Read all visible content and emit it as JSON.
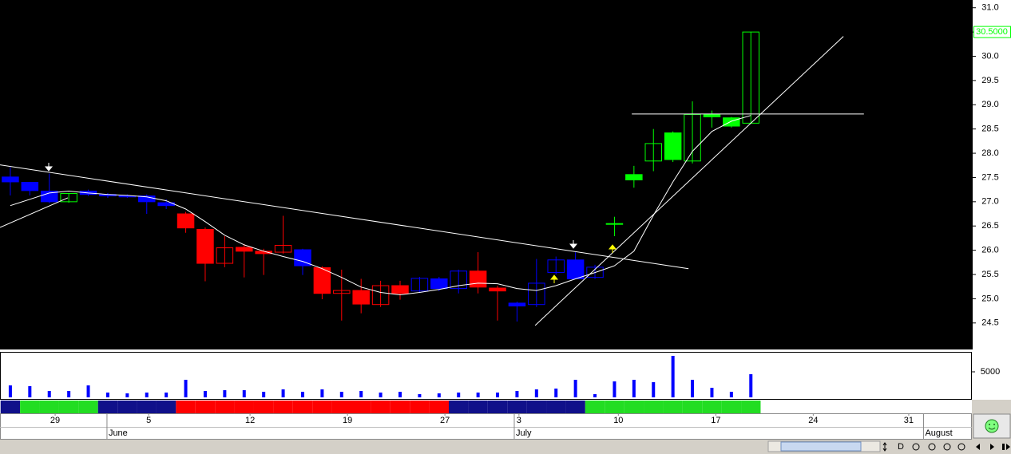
{
  "chart_data": [
    {
      "type": "candlestick",
      "x": [
        0,
        1,
        2,
        3,
        4,
        5,
        6,
        7,
        8,
        9,
        10,
        11,
        12,
        13,
        14,
        15,
        16,
        17,
        18,
        19,
        20,
        21,
        22,
        23,
        24,
        25,
        26,
        27,
        28,
        29,
        30,
        31,
        32,
        33,
        34,
        35,
        36,
        37,
        38
      ],
      "open": [
        27.51,
        27.4,
        27.22,
        27.0,
        27.22,
        27.15,
        27.12,
        27.12,
        26.98,
        26.75,
        26.43,
        25.73,
        26.06,
        25.98,
        25.96,
        26.01,
        25.64,
        25.11,
        25.17,
        24.88,
        25.27,
        25.16,
        25.41,
        25.21,
        25.57,
        25.22,
        24.91,
        24.88,
        25.54,
        25.8,
        25.44,
        26.55,
        27.56,
        27.84,
        28.42,
        27.84,
        28.8,
        28.73,
        28.62
      ],
      "high": [
        27.71,
        27.41,
        27.58,
        27.18,
        27.25,
        27.18,
        27.15,
        27.15,
        27.05,
        26.79,
        26.47,
        26.29,
        26.13,
        26.03,
        26.71,
        26.03,
        25.67,
        25.6,
        25.41,
        25.37,
        25.37,
        25.45,
        25.45,
        25.6,
        25.96,
        25.27,
        24.94,
        25.82,
        25.87,
        25.96,
        25.7,
        26.69,
        27.74,
        28.5,
        28.45,
        29.07,
        28.88,
        28.75,
        30.5
      ],
      "low": [
        27.13,
        27.13,
        26.97,
        26.98,
        27.12,
        27.08,
        27.08,
        26.75,
        26.85,
        26.36,
        25.36,
        25.65,
        25.44,
        25.49,
        25.93,
        25.49,
        24.99,
        24.55,
        24.7,
        24.83,
        24.98,
        25.13,
        25.16,
        25.11,
        25.11,
        24.55,
        24.53,
        24.83,
        25.5,
        25.41,
        25.41,
        26.29,
        27.29,
        27.63,
        27.82,
        27.79,
        28.53,
        28.53,
        28.62
      ],
      "close": [
        27.41,
        27.23,
        27.0,
        27.17,
        27.15,
        27.12,
        27.1,
        27.0,
        26.92,
        26.46,
        25.73,
        26.05,
        25.98,
        25.93,
        26.1,
        25.68,
        25.11,
        25.17,
        24.89,
        25.27,
        25.11,
        25.42,
        25.21,
        25.57,
        25.24,
        25.16,
        24.85,
        25.32,
        25.8,
        25.41,
        25.65,
        26.55,
        27.45,
        28.2,
        27.87,
        28.8,
        28.75,
        28.56,
        30.5
      ],
      "colors": [
        "#0000ff",
        "#0000ff",
        "#0000ff",
        "#00ff00",
        "#0000ff",
        "#0000ff",
        "#0000ff",
        "#0000ff",
        "#0000ff",
        "#ff0000",
        "#ff0000",
        "#ff0000",
        "#ff0000",
        "#ff0000",
        "#ff0000",
        "#0000ff",
        "#ff0000",
        "#ff0000",
        "#ff0000",
        "#ff0000",
        "#ff0000",
        "#0000ff",
        "#0000ff",
        "#0000ff",
        "#ff0000",
        "#ff0000",
        "#0000ff",
        "#0000ff",
        "#0000ff",
        "#0000ff",
        "#0000ff",
        "#00ff00",
        "#00ff00",
        "#00ff00",
        "#00ff00",
        "#00ff00",
        "#00ff00",
        "#00ff00",
        "#00ff00"
      ],
      "last_close_label": "30.5000",
      "last_label_color": "#00ff00",
      "moving_average": {
        "color": "#ffffff",
        "values": [
          26.92,
          27.05,
          27.18,
          27.22,
          27.18,
          27.15,
          27.13,
          27.1,
          27.02,
          26.85,
          26.59,
          26.31,
          26.11,
          25.98,
          25.87,
          25.77,
          25.62,
          25.44,
          25.24,
          25.13,
          25.08,
          25.13,
          25.19,
          25.27,
          25.32,
          25.31,
          25.21,
          25.17,
          25.27,
          25.41,
          25.54,
          25.68,
          25.98,
          26.72,
          27.41,
          28.04,
          28.45,
          28.66,
          28.78
        ]
      },
      "trend_lines": [
        {
          "x": [
            -0.53,
            34.8
          ],
          "y": [
            27.76,
            25.62
          ],
          "color": "#ffffff"
        },
        {
          "x": [
            26.93,
            42.75
          ],
          "y": [
            24.45,
            30.41
          ],
          "color": "#ffffff"
        },
        {
          "x": [
            31.89,
            43.8
          ],
          "y": [
            28.81,
            28.81
          ],
          "color": "#ffffff"
        },
        {
          "x": [
            -0.53,
            2.95
          ],
          "y": [
            26.47,
            27.08
          ],
          "color": "#ffffff"
        }
      ],
      "band_colors": [
        "#10108a",
        "#22dd22",
        "#22dd22",
        "#22dd22",
        "#22dd22",
        "#10108a",
        "#10108a",
        "#10108a",
        "#10108a",
        "#ff0000",
        "#ff0000",
        "#ff0000",
        "#ff0000",
        "#ff0000",
        "#ff0000",
        "#ff0000",
        "#ff0000",
        "#ff0000",
        "#ff0000",
        "#ff0000",
        "#ff0000",
        "#ff0000",
        "#ff0000",
        "#10108a",
        "#10108a",
        "#10108a",
        "#10108a",
        "#10108a",
        "#10108a",
        "#10108a",
        "#22dd22",
        "#22dd22",
        "#22dd22",
        "#22dd22",
        "#22dd22",
        "#22dd22",
        "#22dd22",
        "#22dd22",
        "#22dd22"
      ],
      "ylim": [
        23.97,
        31.16
      ],
      "yticks": [
        24.5,
        {
          "value": 25,
          "label": "25.0"
        },
        25.5,
        {
          "value": 26,
          "label": "26.0"
        },
        26.5,
        {
          "value": 27,
          "label": "27.0"
        },
        27.5,
        {
          "value": 28,
          "label": "28.0"
        },
        28.5,
        {
          "value": 29,
          "label": "29.0"
        },
        29.5,
        {
          "value": 30,
          "label": "30.0"
        },
        30.5,
        {
          "value": 31,
          "label": "31.0"
        }
      ],
      "xlim": [
        -0.53,
        49.34
      ],
      "xticks": [
        {
          "value": 2.3,
          "label": "29"
        },
        {
          "value": 7.1,
          "label": "5"
        },
        {
          "value": 12.3,
          "label": "12"
        },
        {
          "value": 17.3,
          "label": "19"
        },
        {
          "value": 22.3,
          "label": "27"
        },
        {
          "value": 26.1,
          "label": "3"
        },
        {
          "value": 31.2,
          "label": "10"
        },
        {
          "value": 36.2,
          "label": "17"
        },
        {
          "value": 41.2,
          "label": "24"
        },
        {
          "value": 46.1,
          "label": "31"
        }
      ],
      "month_ticks": [
        {
          "value": 5,
          "label": "June"
        },
        {
          "value": 25.9,
          "label": "July"
        },
        {
          "value": 46.9,
          "label": "August"
        }
      ]
    },
    {
      "type": "bar",
      "values": [
        2340,
        2190,
        1250,
        1250,
        2340,
        940,
        780,
        940,
        940,
        3440,
        1250,
        1400,
        1400,
        1090,
        1560,
        1090,
        1560,
        1090,
        1250,
        940,
        1090,
        625,
        780,
        940,
        940,
        940,
        1250,
        1560,
        1720,
        3440,
        625,
        3125,
        3440,
        2970,
        8125,
        3440,
        1875,
        1090,
        4530
      ],
      "color": "#0000ff",
      "ylim": [
        0,
        8906
      ],
      "yticks": [
        5000
      ]
    }
  ],
  "toolbar_text": "D"
}
